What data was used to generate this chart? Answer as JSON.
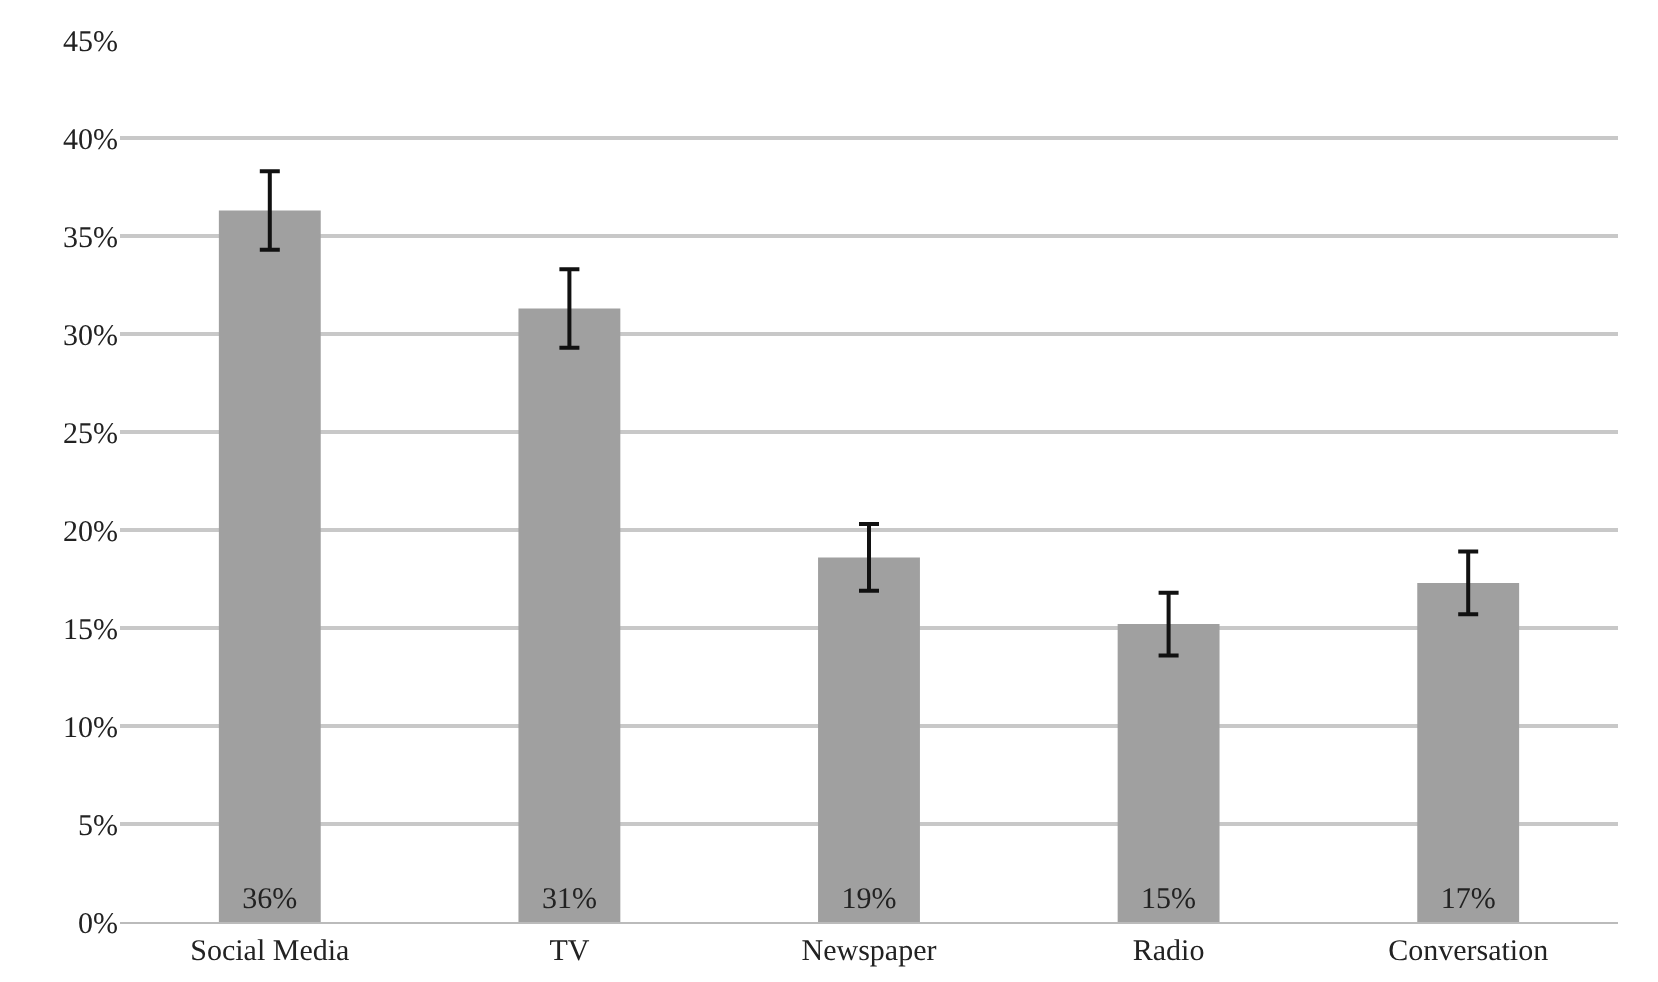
{
  "chart_data": {
    "type": "bar",
    "categories": [
      "Social Media",
      "TV",
      "Newspaper",
      "Radio",
      "Conversation"
    ],
    "values": [
      36.3,
      31.3,
      18.6,
      15.2,
      17.3
    ],
    "errors": [
      2,
      2,
      1.7,
      1.6,
      1.6
    ],
    "value_labels": [
      "36%",
      "31%",
      "19%",
      "15%",
      "17%"
    ],
    "color": "#a0a0a0",
    "ylim": [
      0,
      45
    ],
    "yticks": [
      {
        "value": 0,
        "label": "0%"
      },
      {
        "value": 5,
        "label": "5%"
      },
      {
        "value": 10,
        "label": "10%"
      },
      {
        "value": 15,
        "label": "15%"
      },
      {
        "value": 20,
        "label": "20%"
      },
      {
        "value": 25,
        "label": "25%"
      },
      {
        "value": 30,
        "label": "30%"
      },
      {
        "value": 35,
        "label": "35%"
      },
      {
        "value": 40,
        "label": "40%"
      },
      {
        "value": 45,
        "label": "45%"
      }
    ],
    "grid": "y",
    "legend": false
  }
}
